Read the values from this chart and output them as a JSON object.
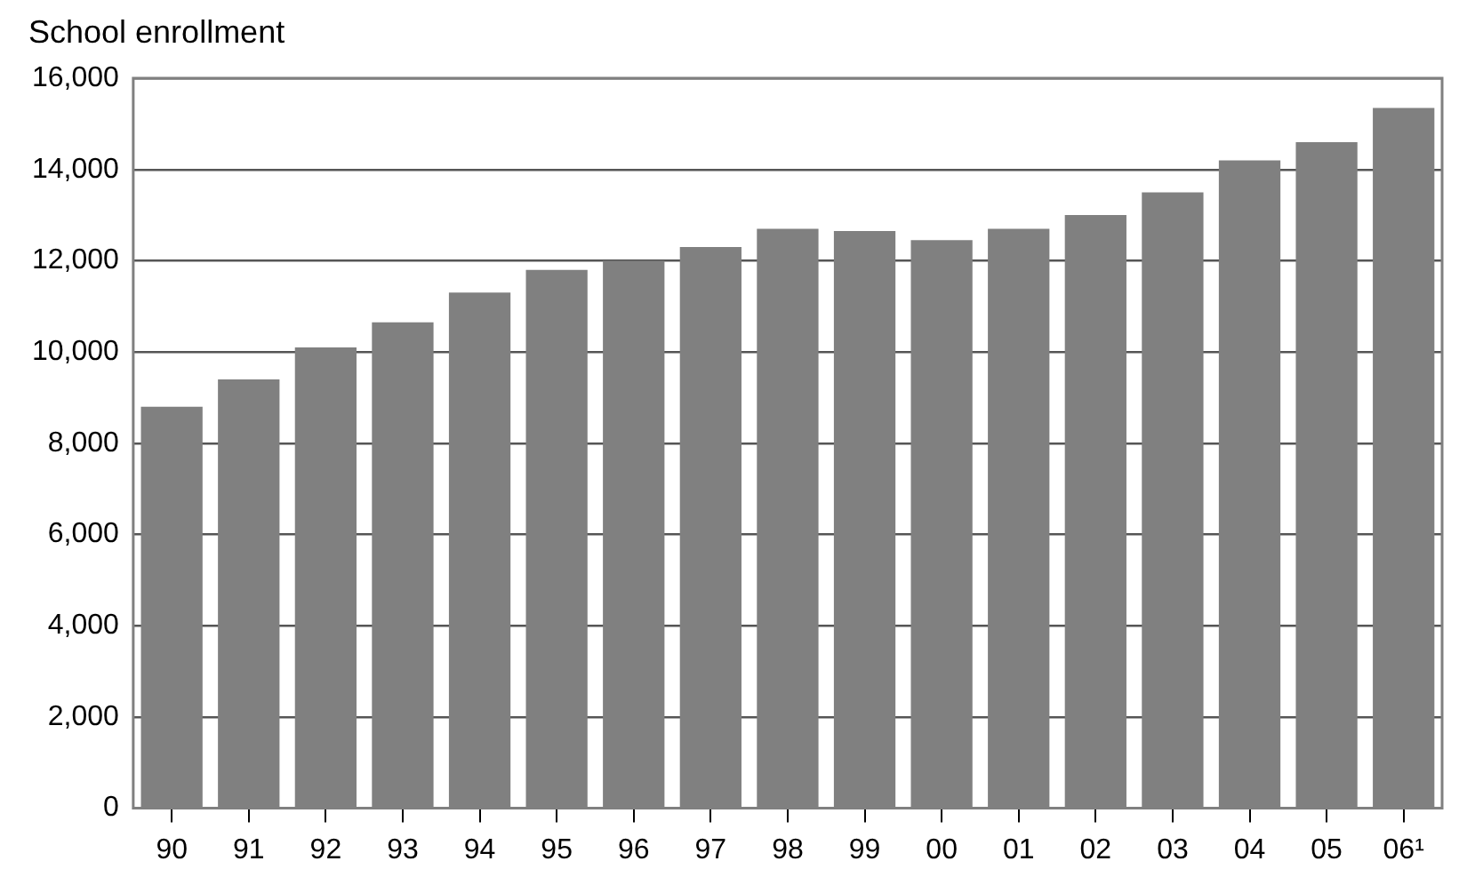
{
  "chart_data": {
    "type": "bar",
    "title": "School enrollment",
    "categories": [
      "90",
      "91",
      "92",
      "93",
      "94",
      "95",
      "96",
      "97",
      "98",
      "99",
      "00",
      "01",
      "02",
      "03",
      "04",
      "05",
      "06¹"
    ],
    "values": [
      8800,
      9400,
      10100,
      10650,
      11300,
      11800,
      12000,
      12300,
      12700,
      12650,
      12450,
      12700,
      13000,
      13500,
      14200,
      14600,
      15350
    ],
    "color": "#808080",
    "ylim": [
      0,
      16000
    ],
    "yticks": [
      0,
      {
        "value": 2000,
        "label": "2,000"
      },
      {
        "value": 4000,
        "label": "4,000"
      },
      {
        "value": 6000,
        "label": "6,000"
      },
      {
        "value": 8000,
        "label": "8,000"
      },
      {
        "value": 10000,
        "label": "10,000"
      },
      {
        "value": 12000,
        "label": "12,000"
      },
      {
        "value": 14000,
        "label": "14,000"
      },
      {
        "value": 16000,
        "label": "16,000"
      }
    ],
    "grid": "y",
    "legend": false
  }
}
